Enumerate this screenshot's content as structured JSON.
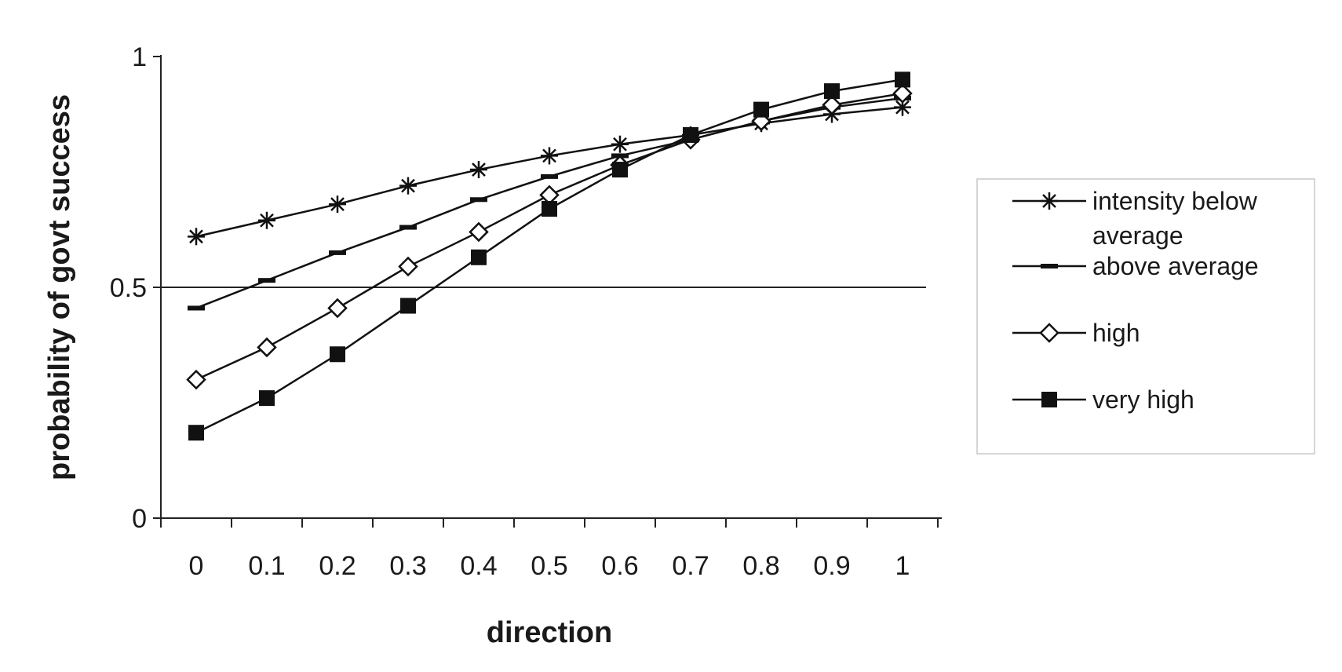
{
  "chart_data": {
    "type": "line",
    "title": "",
    "xlabel": "direction",
    "ylabel": "probability of govt success",
    "x": [
      0,
      0.1,
      0.2,
      0.3,
      0.4,
      0.5,
      0.6,
      0.7,
      0.8,
      0.9,
      1
    ],
    "x_tick_labels": [
      "0",
      "0.1",
      "0.2",
      "0.3",
      "0.4",
      "0.5",
      "0.6",
      "0.7",
      "0.8",
      "0.9",
      "1"
    ],
    "y_tick_labels": [
      "0",
      "0.5",
      "1"
    ],
    "ylim": [
      0,
      1
    ],
    "reference_line_y": 0.5,
    "legend_position": "right",
    "series": [
      {
        "name": "intensity below average",
        "label_lines": [
          "intensity below",
          "average"
        ],
        "marker": "asterisk",
        "values": [
          0.61,
          0.645,
          0.68,
          0.72,
          0.755,
          0.785,
          0.81,
          0.83,
          0.855,
          0.875,
          0.89
        ]
      },
      {
        "name": "above average",
        "label_lines": [
          "above average"
        ],
        "marker": "dash",
        "values": [
          0.455,
          0.515,
          0.575,
          0.63,
          0.69,
          0.74,
          0.785,
          0.82,
          0.86,
          0.89,
          0.91
        ]
      },
      {
        "name": "high",
        "label_lines": [
          "high"
        ],
        "marker": "diamond-open",
        "values": [
          0.3,
          0.37,
          0.455,
          0.545,
          0.62,
          0.7,
          0.765,
          0.82,
          0.86,
          0.895,
          0.92
        ]
      },
      {
        "name": "very high",
        "label_lines": [
          "very high"
        ],
        "marker": "square-filled",
        "values": [
          0.185,
          0.26,
          0.355,
          0.46,
          0.565,
          0.67,
          0.755,
          0.83,
          0.885,
          0.925,
          0.95
        ]
      }
    ]
  }
}
